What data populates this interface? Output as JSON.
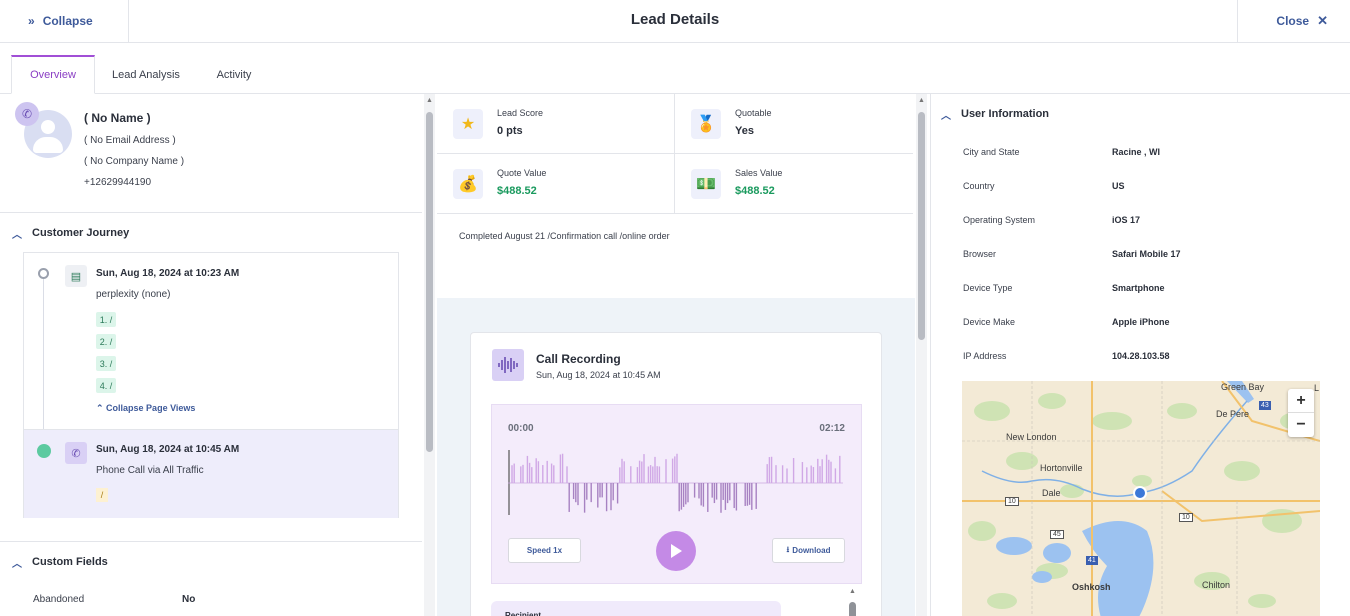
{
  "header": {
    "collapse_label": "Collapse",
    "title": "Lead Details",
    "close_label": "Close"
  },
  "tabs": [
    {
      "label": "Overview"
    },
    {
      "label": "Lead Analysis"
    },
    {
      "label": "Activity"
    }
  ],
  "contact": {
    "name": "( No Name )",
    "email": "( No Email Address )",
    "company": "( No Company Name )",
    "phone": "+12629944190"
  },
  "journey": {
    "title": "Customer Journey",
    "events": [
      {
        "time": "Sun, Aug 18, 2024 at 10:23 AM",
        "source": "perplexity (none)",
        "page_views": [
          "1. /",
          "2. /",
          "3. /",
          "4. /"
        ],
        "collapse_label": "Collapse Page Views"
      },
      {
        "time": "Sun, Aug 18, 2024 at 10:45 AM",
        "source": "Phone Call via All Traffic",
        "tag": "/"
      }
    ]
  },
  "custom_fields": {
    "title": "Custom Fields",
    "rows": [
      {
        "label": "Abandoned",
        "value": "No"
      }
    ]
  },
  "stats": {
    "lead_score": {
      "label": "Lead Score",
      "value": "0 pts"
    },
    "quotable": {
      "label": "Quotable",
      "value": "Yes"
    },
    "quote_value": {
      "label": "Quote Value",
      "value": "$488.52"
    },
    "sales_value": {
      "label": "Sales Value",
      "value": "$488.52"
    }
  },
  "note": "Completed August 21 /Confirmation call /online order",
  "recording": {
    "title": "Call Recording",
    "date": "Sun, Aug 18, 2024 at 10:45 AM",
    "time_start": "00:00",
    "time_end": "02:12",
    "speed_label": "Speed 1x",
    "download_label": "Download",
    "recipient_label": "Recipient"
  },
  "user_info": {
    "title": "User Information",
    "rows": [
      {
        "label": "City and State",
        "value": "Racine , WI"
      },
      {
        "label": "Country",
        "value": "US"
      },
      {
        "label": "Operating System",
        "value": "iOS 17"
      },
      {
        "label": "Browser",
        "value": "Safari Mobile 17"
      },
      {
        "label": "Device Type",
        "value": "Smartphone"
      },
      {
        "label": "Device Make",
        "value": "Apple iPhone"
      },
      {
        "label": "IP Address",
        "value": "104.28.103.58"
      }
    ]
  },
  "map": {
    "labels": [
      "Green Bay",
      "De Pere",
      "New London",
      "Hortonville",
      "Dale",
      "Oshkosh",
      "Chilton",
      "43",
      "10",
      "10",
      "45",
      "41",
      "L"
    ],
    "zoom_in": "+",
    "zoom_out": "−"
  },
  "colors": {
    "accent": "#8a3ec4",
    "link": "#3e5a9a",
    "money": "#1a9a5e"
  }
}
